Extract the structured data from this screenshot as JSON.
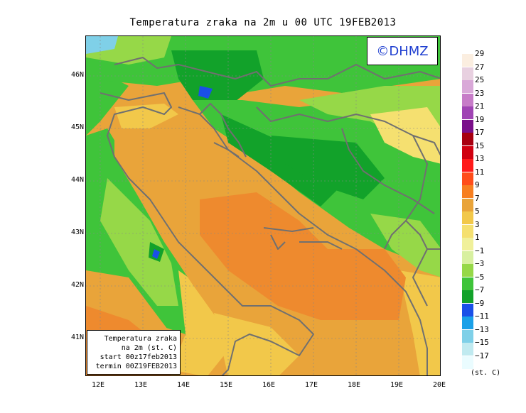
{
  "title": "Temperatura zraka na 2m u 00 UTC 19FEB2013",
  "logo": "©DHMZ",
  "info_box": {
    "line1": "Temperatura zraka",
    "line2": "na 2m (st. C)",
    "line3": "start 00z17feb2013",
    "line4": "termin 00Z19FEB2013"
  },
  "lat_labels": [
    "46N",
    "45N",
    "44N",
    "43N",
    "42N",
    "41N"
  ],
  "lon_labels": [
    "12E",
    "13E",
    "14E",
    "15E",
    "16E",
    "17E",
    "18E",
    "19E",
    "20E"
  ],
  "legend": {
    "ticks": [
      "29",
      "27",
      "25",
      "23",
      "21",
      "19",
      "17",
      "15",
      "13",
      "11",
      "9",
      "7",
      "5",
      "3",
      "1",
      "−1",
      "−3",
      "−5",
      "−7",
      "−9",
      "−11",
      "−13",
      "−15",
      "−17"
    ],
    "unit": "(st. C)",
    "colors": [
      "#fbeee0",
      "#e8d0e0",
      "#d9a8d8",
      "#c77cc8",
      "#a044b4",
      "#7a0f8a",
      "#a80010",
      "#d00010",
      "#ff1a1a",
      "#ff4d1a",
      "#f77f20",
      "#e9a43a",
      "#f2c84a",
      "#f5e070",
      "#f0f09a",
      "#d8f0a0",
      "#96d848",
      "#3fc43a",
      "#12a22a",
      "#1a50e8",
      "#1aa0e8",
      "#7fd0e8",
      "#c0eaf0",
      "#eafcff"
    ]
  },
  "colors": {
    "sea_warm": "#e9a43a",
    "sea_hot": "#ee8a2e",
    "coast_yellow": "#f2c84a",
    "light_yellow": "#f5e070",
    "land_light": "#96d848",
    "land_mid": "#3fc43a",
    "land_dark": "#12a22a",
    "cold_blue": "#1a50e8",
    "border": "#707070"
  }
}
